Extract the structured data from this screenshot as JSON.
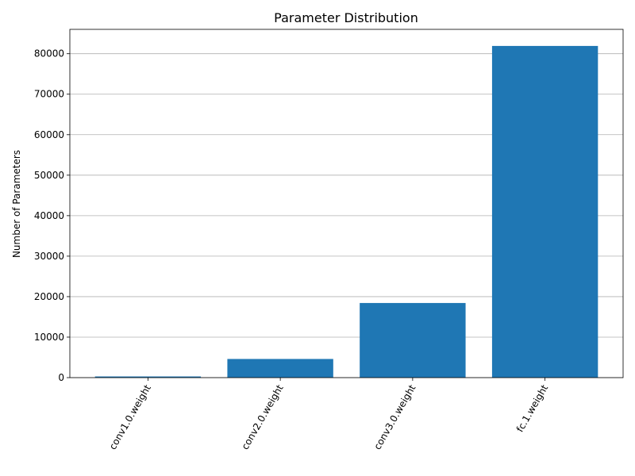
{
  "chart_data": {
    "type": "bar",
    "title": "Parameter Distribution",
    "xlabel": "",
    "ylabel": "Number of Parameters",
    "categories": [
      "conv1.0.weight",
      "conv2.0.weight",
      "conv3.0.weight",
      "fc.1.weight"
    ],
    "values": [
      288,
      4608,
      18432,
      81920
    ],
    "ylim": [
      0,
      86016
    ],
    "yticks": [
      0,
      10000,
      20000,
      30000,
      40000,
      50000,
      60000,
      70000,
      80000
    ],
    "ytick_labels": [
      "0",
      "10000",
      "20000",
      "30000",
      "40000",
      "50000",
      "60000",
      "70000",
      "80000"
    ],
    "grid": "y",
    "xtick_rotation_deg": 60,
    "colors": {
      "bar": "#1f77b4"
    }
  }
}
